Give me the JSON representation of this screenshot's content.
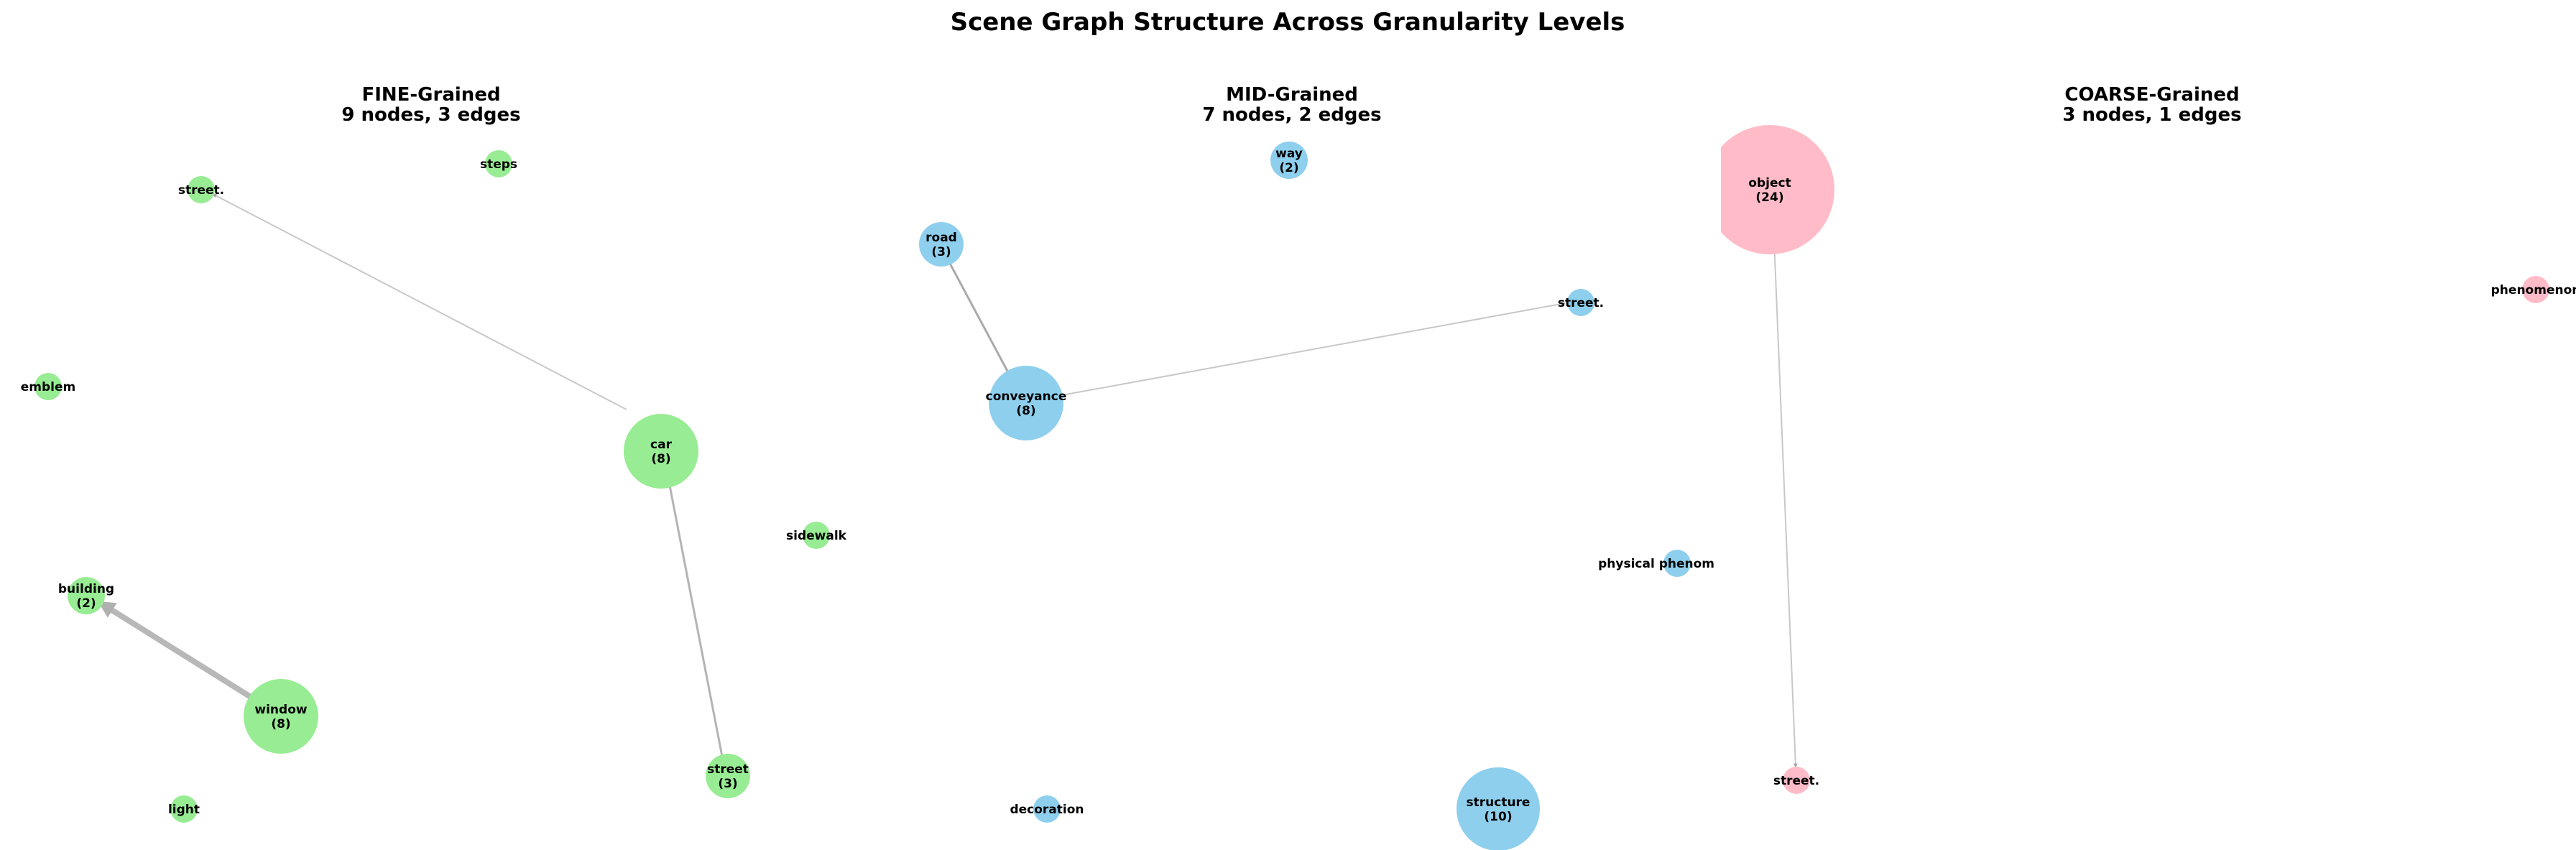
{
  "figure": {
    "title": "Scene Graph Structure Across Granularity Levels"
  },
  "panels": [
    {
      "key": "fine",
      "title": "FINE-Grained",
      "subtitle": "9 nodes, 3 edges",
      "node_color": "#98ec93",
      "nodes": [
        {
          "id": "street.",
          "label": "street.",
          "count": null
        },
        {
          "id": "steps",
          "label": "steps",
          "count": null
        },
        {
          "id": "emblem",
          "label": "emblem",
          "count": null
        },
        {
          "id": "car",
          "label": "car",
          "count": 8
        },
        {
          "id": "sidewalk",
          "label": "sidewalk",
          "count": null
        },
        {
          "id": "building",
          "label": "building",
          "count": 2
        },
        {
          "id": "window",
          "label": "window",
          "count": 8
        },
        {
          "id": "street",
          "label": "street",
          "count": 3
        },
        {
          "id": "light",
          "label": "light",
          "count": null
        }
      ],
      "edges": [
        {
          "source": "car",
          "target": "street.",
          "weight": 1
        },
        {
          "source": "car",
          "target": "street",
          "weight": 2
        },
        {
          "source": "window",
          "target": "building",
          "weight": 5
        }
      ]
    },
    {
      "key": "mid",
      "title": "MID-Grained",
      "subtitle": "7 nodes, 2 edges",
      "node_color": "#8ecfed",
      "nodes": [
        {
          "id": "way",
          "label": "way",
          "count": 2
        },
        {
          "id": "road",
          "label": "road",
          "count": 3
        },
        {
          "id": "street.",
          "label": "street.",
          "count": null
        },
        {
          "id": "conveyance",
          "label": "conveyance",
          "count": 8
        },
        {
          "id": "physical phenom",
          "label": "physical phenom",
          "count": null
        },
        {
          "id": "decoration",
          "label": "decoration",
          "count": null
        },
        {
          "id": "structure",
          "label": "structure",
          "count": 10
        }
      ],
      "edges": [
        {
          "source": "conveyance",
          "target": "road",
          "weight": 3
        },
        {
          "source": "conveyance",
          "target": "street.",
          "weight": 1
        }
      ]
    },
    {
      "key": "coarse",
      "title": "COARSE-Grained",
      "subtitle": "3 nodes, 1 edges",
      "node_color": "#ffbcc8",
      "nodes": [
        {
          "id": "object",
          "label": "object",
          "count": 24
        },
        {
          "id": "phenomenon",
          "label": "phenomenon",
          "count": null
        },
        {
          "id": "street.",
          "label": "street.",
          "count": null
        }
      ],
      "edges": [
        {
          "source": "object",
          "target": "street.",
          "weight": 1
        }
      ]
    }
  ]
}
